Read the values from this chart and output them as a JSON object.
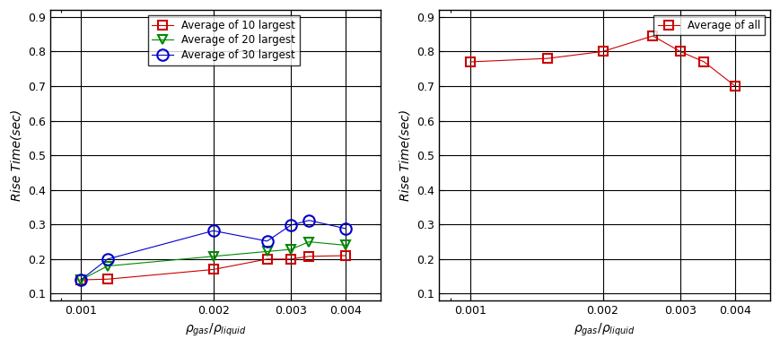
{
  "left": {
    "x_10": [
      0.001,
      0.00115,
      0.002,
      0.00265,
      0.003,
      0.0033,
      0.004
    ],
    "y_10": [
      0.14,
      0.142,
      0.17,
      0.2,
      0.2,
      0.208,
      0.21
    ],
    "x_20": [
      0.001,
      0.00115,
      0.002,
      0.00265,
      0.003,
      0.0033,
      0.004
    ],
    "y_20": [
      0.14,
      0.18,
      0.208,
      0.222,
      0.228,
      0.25,
      0.24
    ],
    "x_30": [
      0.001,
      0.00115,
      0.002,
      0.00265,
      0.003,
      0.0033,
      0.004
    ],
    "y_30": [
      0.14,
      0.2,
      0.282,
      0.252,
      0.298,
      0.312,
      0.288
    ],
    "ylabel": "Rise Time(sec)",
    "xlabel_parts": [
      "gas",
      "liquid"
    ],
    "ylim": [
      0.08,
      0.92
    ],
    "yticks": [
      0.1,
      0.2,
      0.3,
      0.4,
      0.5,
      0.6,
      0.7,
      0.8,
      0.9
    ],
    "legend_10": "Average of 10 largest",
    "legend_20": "Average of 20 largest",
    "legend_30": "Average of 30 largest",
    "color_10": "#cc0000",
    "color_20": "#008800",
    "color_30": "#0000cc"
  },
  "right": {
    "x_all": [
      0.001,
      0.0015,
      0.002,
      0.0026,
      0.003,
      0.0034,
      0.004
    ],
    "y_all": [
      0.77,
      0.78,
      0.8,
      0.845,
      0.8,
      0.77,
      0.7
    ],
    "ylabel": "Rise Time(sec)",
    "ylim": [
      0.08,
      0.92
    ],
    "yticks": [
      0.1,
      0.2,
      0.3,
      0.4,
      0.5,
      0.6,
      0.7,
      0.8,
      0.9
    ],
    "legend_all": "Average of all",
    "color_all": "#cc0000"
  },
  "figsize": [
    8.69,
    3.88
  ],
  "dpi": 100,
  "bg_color": "#ffffff"
}
